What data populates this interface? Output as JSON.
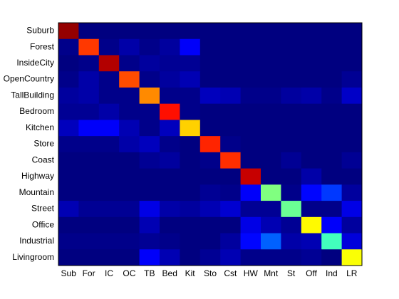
{
  "chart_data": {
    "type": "heatmap",
    "colormap": "jet",
    "x_categories": [
      "Sub",
      "For",
      "IC",
      "OC",
      "TB",
      "Bed",
      "Kit",
      "Sto",
      "Cst",
      "HW",
      "Mnt",
      "St",
      "Off",
      "Ind",
      "LR"
    ],
    "y_categories": [
      "Suburb",
      "Forest",
      "InsideCity",
      "OpenCountry",
      "TallBuilding",
      "Bedroom",
      "Kitchen",
      "Store",
      "Coast",
      "Highway",
      "Mountain",
      "Street",
      "Office",
      "Industrial",
      "Livingroom"
    ],
    "values": [
      [
        0.98,
        0,
        0,
        0,
        0,
        0,
        0,
        0,
        0,
        0,
        0,
        0,
        0,
        0,
        0
      ],
      [
        0.01,
        0.82,
        0.01,
        0.04,
        0.01,
        0.03,
        0.12,
        0,
        0,
        0,
        0,
        0,
        0,
        0,
        0
      ],
      [
        0,
        0.01,
        0.95,
        0.01,
        0.03,
        0.02,
        0.02,
        0,
        0,
        0,
        0,
        0,
        0,
        0,
        0
      ],
      [
        0.01,
        0.04,
        0.01,
        0.8,
        0.01,
        0.03,
        0.05,
        0,
        0,
        0,
        0,
        0,
        0,
        0,
        0.02
      ],
      [
        0.03,
        0.04,
        0.01,
        0.01,
        0.74,
        0.01,
        0.01,
        0.06,
        0.05,
        0.01,
        0.01,
        0.03,
        0.04,
        0.01,
        0.07
      ],
      [
        0.02,
        0.02,
        0.04,
        0.01,
        0.01,
        0.86,
        0.01,
        0,
        0,
        0,
        0,
        0,
        0,
        0,
        0
      ],
      [
        0.06,
        0.12,
        0.12,
        0.05,
        0.01,
        0.06,
        0.67,
        0,
        0,
        0,
        0,
        0,
        0,
        0,
        0
      ],
      [
        0.01,
        0.01,
        0.01,
        0.04,
        0.06,
        0.01,
        0,
        0.84,
        0.01,
        0,
        0,
        0,
        0,
        0,
        0
      ],
      [
        0,
        0,
        0,
        0,
        0.02,
        0.03,
        0,
        0.01,
        0.83,
        0,
        0,
        0.02,
        0,
        0,
        0.02
      ],
      [
        0,
        0,
        0,
        0,
        0,
        0,
        0,
        0,
        0,
        0.93,
        0,
        0,
        0.04,
        0,
        0
      ],
      [
        0,
        0,
        0,
        0,
        0,
        0,
        0,
        0.02,
        0.01,
        0.12,
        0.5,
        0.01,
        0.13,
        0.18,
        0.03
      ],
      [
        0.05,
        0.02,
        0.02,
        0.02,
        0.1,
        0.04,
        0.03,
        0.05,
        0.08,
        0.02,
        0.02,
        0.48,
        0.01,
        0.01,
        0.1
      ],
      [
        0,
        0,
        0,
        0,
        0.05,
        0,
        0,
        0,
        0,
        0.1,
        0.05,
        0.02,
        0.63,
        0.12,
        0.03
      ],
      [
        0.01,
        0.01,
        0.01,
        0.01,
        0.02,
        0.01,
        0,
        0,
        0.03,
        0.13,
        0.22,
        0.04,
        0.05,
        0.44,
        0.09
      ],
      [
        0,
        0,
        0,
        0,
        0.12,
        0.05,
        0,
        0.02,
        0.05,
        0.01,
        0.01,
        0.01,
        0.02,
        0,
        0.62
      ]
    ]
  }
}
